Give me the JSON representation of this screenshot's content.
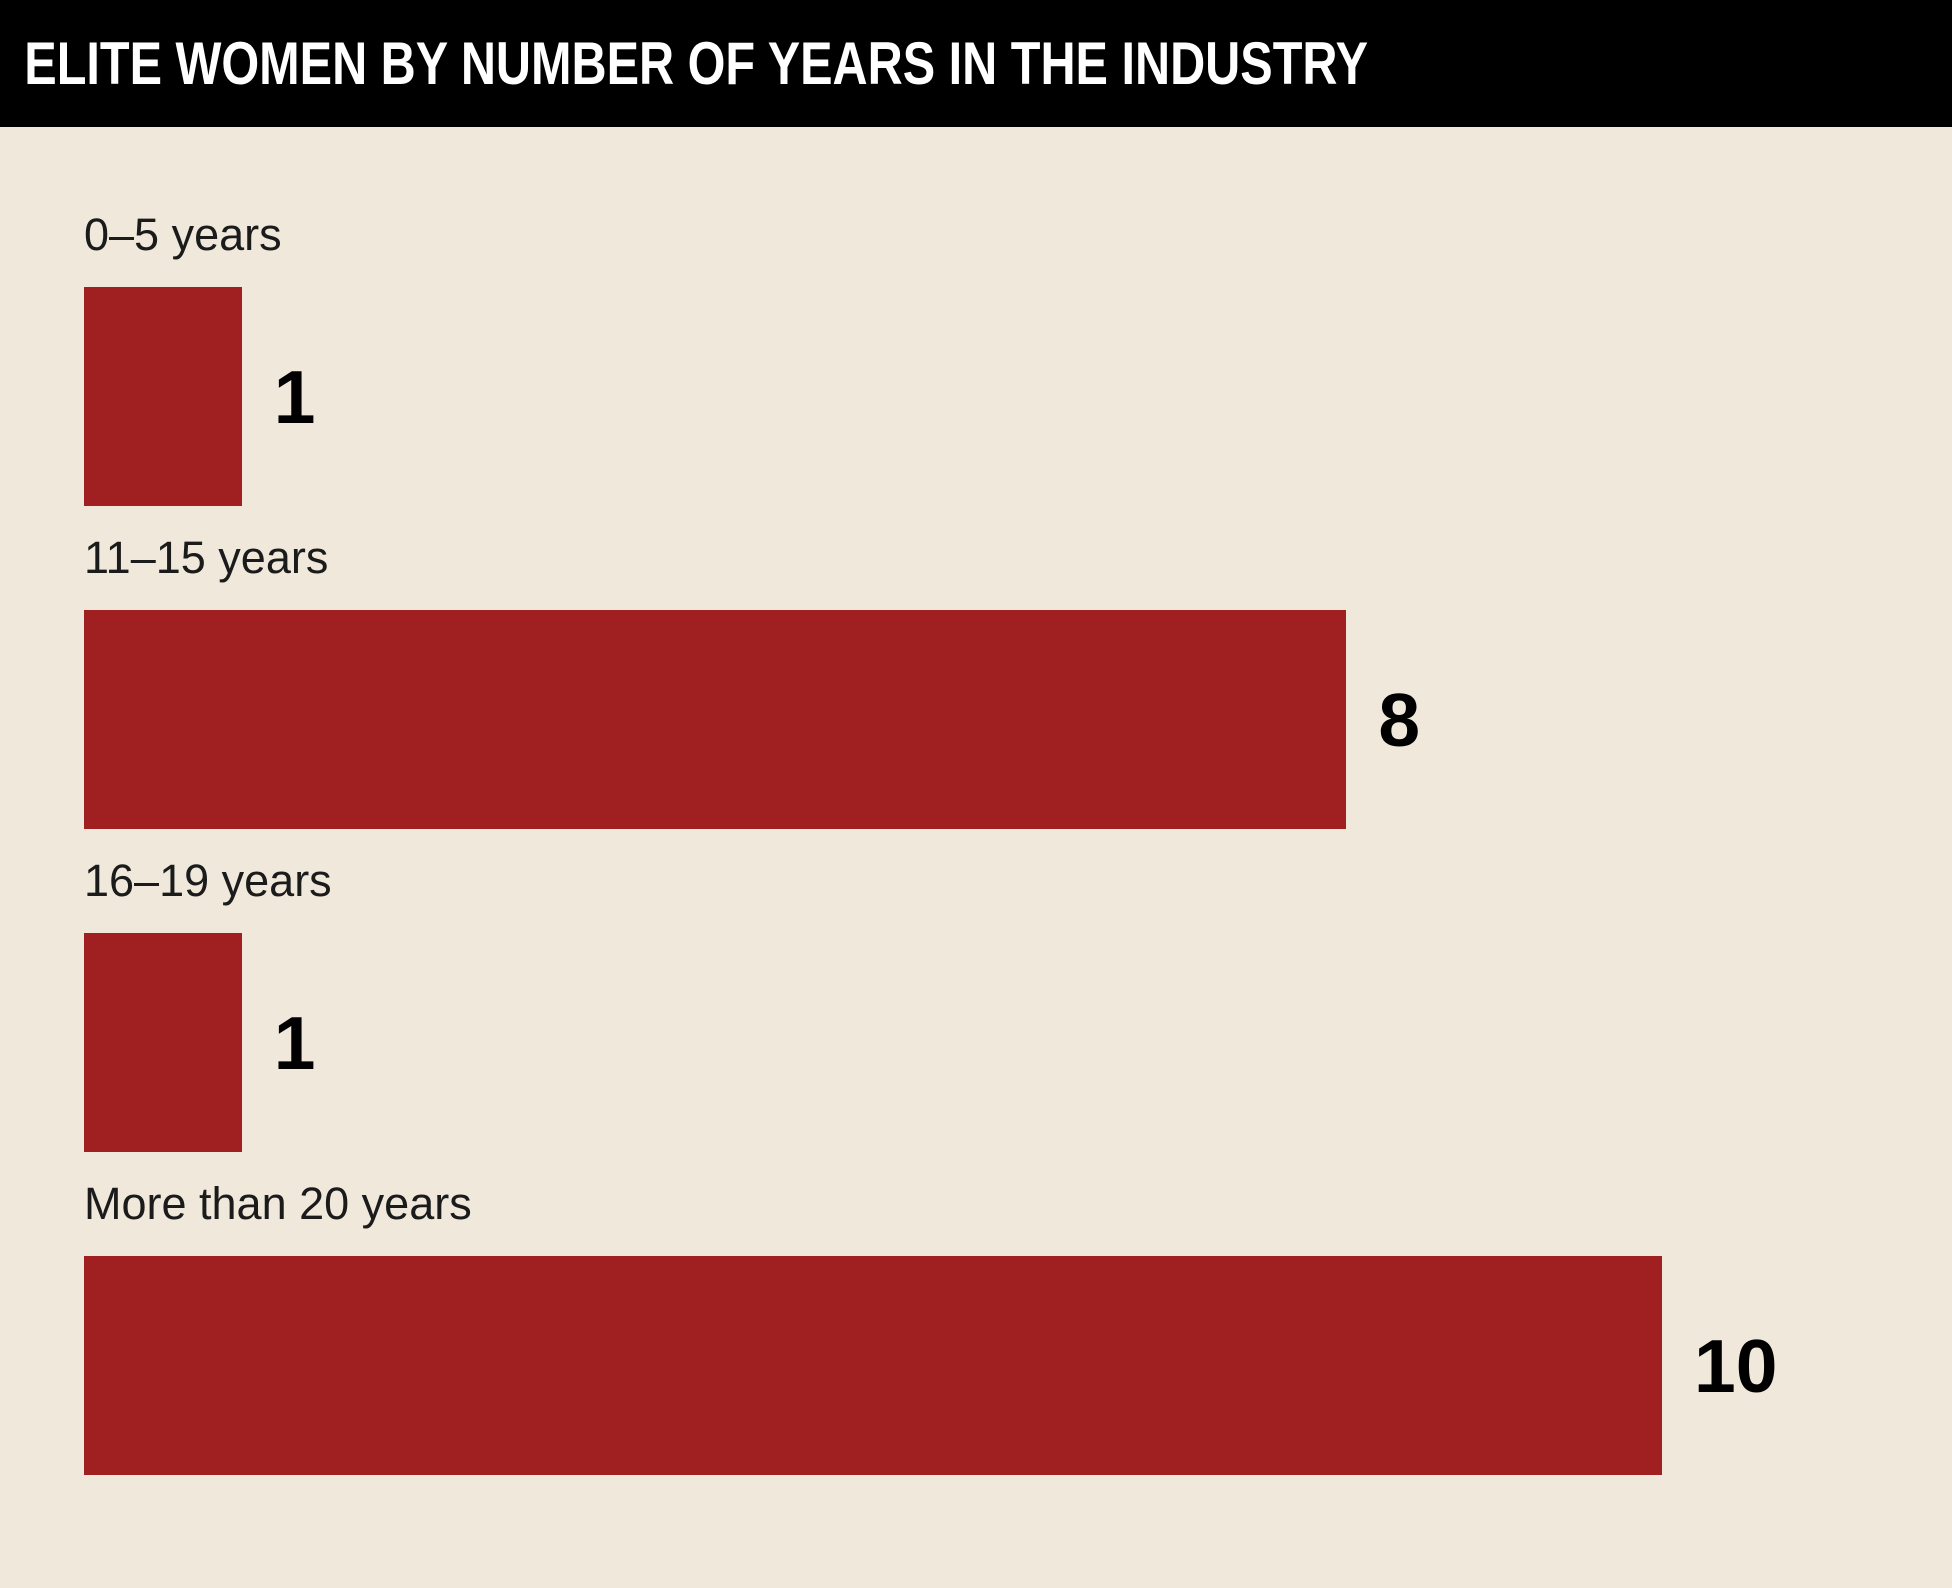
{
  "header": {
    "title": "ELITE WOMEN BY NUMBER OF YEARS IN THE INDUSTRY"
  },
  "chart_data": {
    "type": "bar",
    "orientation": "horizontal",
    "title": "ELITE WOMEN BY NUMBER OF YEARS IN THE INDUSTRY",
    "categories": [
      "0–5 years",
      "11–15 years",
      "16–19 years",
      "More than 20 years"
    ],
    "values": [
      1,
      8,
      1,
      10
    ],
    "value_labels": [
      "1",
      "8",
      "1",
      "10"
    ],
    "xlabel": "",
    "ylabel": "",
    "xlim": [
      0,
      10
    ],
    "grid": false,
    "legend": false,
    "bar_color": "#A01F20",
    "background_color": "#EFE8DB",
    "header_background": "#000000",
    "header_text_color": "#FFFFFF",
    "category_label_color": "#1B1B1B",
    "value_label_color": "#000000"
  }
}
